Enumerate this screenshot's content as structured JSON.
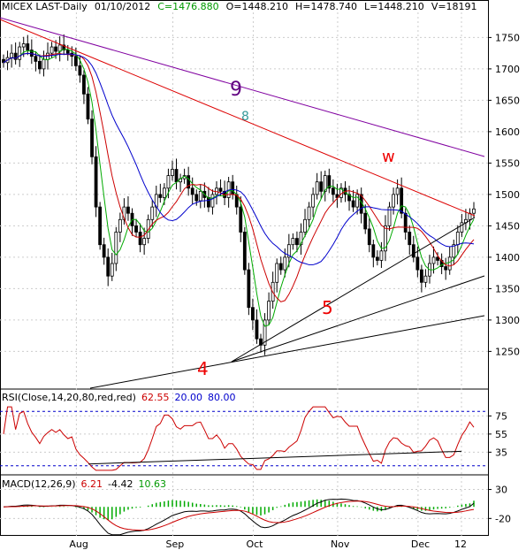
{
  "header": {
    "symbol": "MICEX LAST-Daily",
    "date": "01/10/2012",
    "close": "C=1476.880",
    "open": "O=1448.210",
    "high": "H=1478.740",
    "low": "L=1448.210",
    "volume": "V=18191"
  },
  "rsi_header": {
    "label": "RSI(Close,14,20,80,red,red)",
    "value": "62.55",
    "low_level": "20.00",
    "high_level": "80.00"
  },
  "macd_header": {
    "label": "MACD(12,26,9)",
    "macd": "6.21",
    "signal": "-4.42",
    "hist": "10.63"
  },
  "colors": {
    "price": "#000000",
    "ma_fast": "#00aa00",
    "ma_mid": "#cc0000",
    "ma_slow": "#0000cc",
    "trend_red": "#dd0000",
    "trend_purple": "#8000a0",
    "label_red": "#ee0000",
    "label_purple": "#600080",
    "label_teal": "#339999",
    "rsi_line": "#cc0000",
    "macd_hist": "#00aa00"
  },
  "chart_data": [
    {
      "type": "candlestick",
      "title": "MICEX LAST-Daily",
      "ylim": [
        1190,
        1790
      ],
      "yticks": [
        1250,
        1300,
        1350,
        1400,
        1450,
        1500,
        1550,
        1600,
        1650,
        1700,
        1750
      ],
      "x_ticks": [
        "Aug",
        "Sep",
        "Oct",
        "Nov",
        "Dec",
        "12"
      ],
      "wave_labels": [
        "9",
        "8",
        "w",
        "5",
        "4"
      ],
      "approx_closes": [
        1710,
        1718,
        1725,
        1715,
        1735,
        1740,
        1730,
        1720,
        1712,
        1700,
        1715,
        1725,
        1735,
        1728,
        1738,
        1730,
        1725,
        1720,
        1705,
        1690,
        1660,
        1620,
        1560,
        1480,
        1420,
        1400,
        1370,
        1390,
        1440,
        1460,
        1480,
        1470,
        1450,
        1440,
        1420,
        1430,
        1460,
        1480,
        1500,
        1495,
        1510,
        1530,
        1540,
        1520,
        1525,
        1530,
        1510,
        1500,
        1490,
        1505,
        1495,
        1480,
        1500,
        1510,
        1505,
        1495,
        1520,
        1500,
        1480,
        1440,
        1380,
        1320,
        1300,
        1270,
        1260,
        1300,
        1330,
        1360,
        1390,
        1380,
        1400,
        1420,
        1430,
        1420,
        1440,
        1460,
        1480,
        1500,
        1520,
        1505,
        1530,
        1510,
        1500,
        1495,
        1510,
        1500,
        1490,
        1480,
        1500,
        1470,
        1445,
        1420,
        1400,
        1395,
        1410,
        1450,
        1480,
        1500,
        1510,
        1470,
        1440,
        1420,
        1400,
        1380,
        1360,
        1370,
        1390,
        1400,
        1395,
        1385,
        1380,
        1400,
        1420,
        1440,
        1455,
        1460,
        1470,
        1476.88
      ]
    },
    {
      "type": "line",
      "title": "RSI(Close,14,20,80,red,red)",
      "ylim": [
        10,
        90
      ],
      "yticks": [
        35,
        55,
        75
      ],
      "levels": [
        20,
        80
      ],
      "last": 62.55
    },
    {
      "type": "bar",
      "title": "MACD(12,26,9)",
      "ylim": [
        -50,
        40
      ],
      "yticks": [
        -20,
        30
      ],
      "last_macd": 6.21,
      "last_signal": -4.42,
      "last_hist": 10.63
    }
  ]
}
